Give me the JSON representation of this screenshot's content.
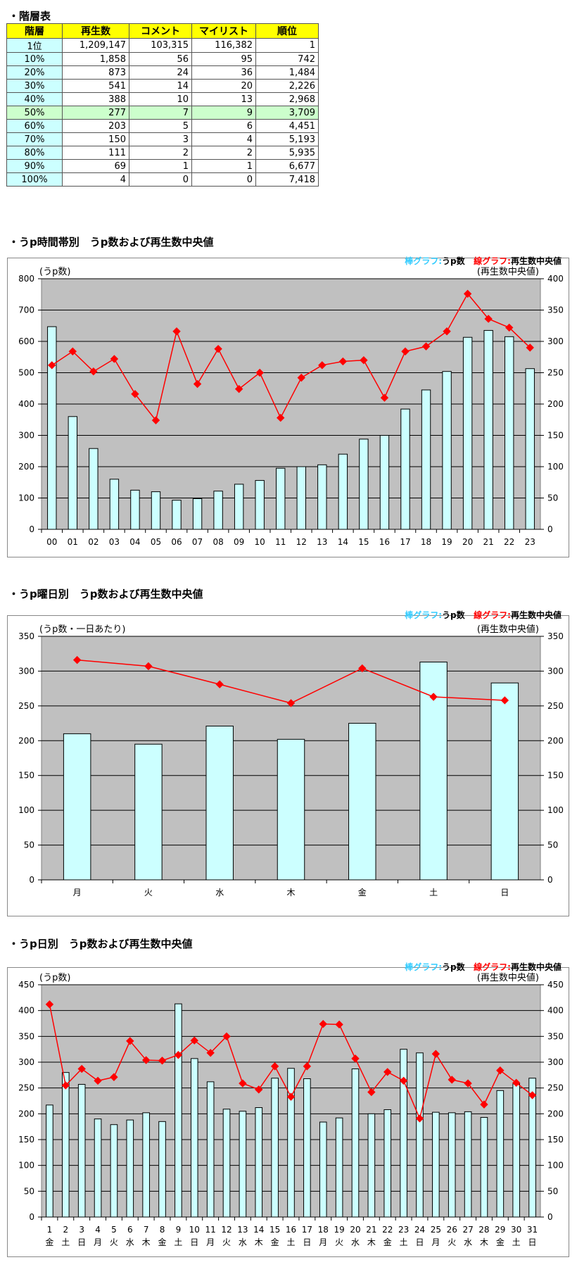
{
  "table": {
    "title": "・階層表",
    "headers": [
      "階層",
      "再生数",
      "コメント",
      "マイリスト",
      "順位"
    ],
    "rows": [
      [
        "1位",
        "1,209,147",
        "103,315",
        "116,382",
        "1"
      ],
      [
        "10%",
        "1,858",
        "56",
        "95",
        "742"
      ],
      [
        "20%",
        "873",
        "24",
        "36",
        "1,484"
      ],
      [
        "30%",
        "541",
        "14",
        "20",
        "2,226"
      ],
      [
        "40%",
        "388",
        "10",
        "13",
        "2,968"
      ],
      [
        "50%",
        "277",
        "7",
        "9",
        "3,709"
      ],
      [
        "60%",
        "203",
        "5",
        "6",
        "4,451"
      ],
      [
        "70%",
        "150",
        "3",
        "4",
        "5,193"
      ],
      [
        "80%",
        "111",
        "2",
        "2",
        "5,935"
      ],
      [
        "90%",
        "69",
        "1",
        "1",
        "6,677"
      ],
      [
        "100%",
        "4",
        "0",
        "0",
        "7,418"
      ]
    ],
    "highlight_row": "50%"
  },
  "colors": {
    "bar_fill": "#ccffff",
    "bar_stroke": "#000000",
    "plot_bg": "#c0c0c0",
    "line": "#ff0000",
    "header_bg": "#ffff00",
    "level_bg": "#ccffff",
    "highlight_bg": "#ccffcc"
  },
  "chart_data": [
    {
      "type": "bar",
      "title": "・うp時間帯別　うp数および再生数中央値",
      "legend": {
        "bar_label": "棒グラフ:",
        "bar_name": "うp数",
        "line_label": "線グラフ:",
        "line_name": "再生数中央値",
        "position": "top-right"
      },
      "ylabel_left": "(うp数)",
      "ylabel_right": "(再生数中央値)",
      "categories": [
        "00",
        "01",
        "02",
        "03",
        "04",
        "05",
        "06",
        "07",
        "08",
        "09",
        "10",
        "11",
        "12",
        "13",
        "14",
        "15",
        "16",
        "17",
        "18",
        "19",
        "20",
        "21",
        "22",
        "23"
      ],
      "series": [
        {
          "name": "うp数",
          "type": "bar",
          "axis": "left",
          "values": [
            647,
            360,
            258,
            160,
            125,
            120,
            93,
            98,
            122,
            144,
            156,
            195,
            200,
            206,
            240,
            288,
            300,
            384,
            445,
            504,
            613,
            635,
            615,
            513
          ]
        },
        {
          "name": "再生数中央値",
          "type": "line",
          "axis": "right",
          "values": [
            262,
            284,
            252,
            272,
            216,
            174,
            316,
            232,
            288,
            224,
            250,
            178,
            242,
            262,
            268,
            270,
            210,
            284,
            292,
            316,
            376,
            336,
            322,
            290
          ]
        }
      ],
      "ylim_left": [
        0,
        800
      ],
      "yticks_left": [
        0,
        100,
        200,
        300,
        400,
        500,
        600,
        700,
        800
      ],
      "ylim_right": [
        0,
        400
      ],
      "yticks_right": [
        0,
        50,
        100,
        150,
        200,
        250,
        300,
        350,
        400
      ],
      "grid": true
    },
    {
      "type": "bar",
      "title": "・うp曜日別　うp数および再生数中央値",
      "legend": {
        "bar_label": "棒グラフ:",
        "bar_name": "うp数",
        "line_label": "線グラフ:",
        "line_name": "再生数中央値",
        "position": "top-right"
      },
      "ylabel_left": "(うp数・一日あたり)",
      "ylabel_right": "(再生数中央値)",
      "categories": [
        "月",
        "火",
        "水",
        "木",
        "金",
        "土",
        "日"
      ],
      "series": [
        {
          "name": "うp数",
          "type": "bar",
          "axis": "left",
          "values": [
            210,
            195,
            221,
            202,
            225,
            313,
            283
          ]
        },
        {
          "name": "再生数中央値",
          "type": "line",
          "axis": "right",
          "values": [
            316,
            307,
            281,
            254,
            304,
            263,
            258
          ]
        }
      ],
      "ylim_left": [
        0,
        350
      ],
      "yticks_left": [
        0,
        50,
        100,
        150,
        200,
        250,
        300,
        350
      ],
      "ylim_right": [
        0,
        350
      ],
      "yticks_right": [
        0,
        50,
        100,
        150,
        200,
        250,
        300,
        350
      ],
      "grid": true
    },
    {
      "type": "bar",
      "title": "・うp日別　うp数および再生数中央値",
      "legend": {
        "bar_label": "棒グラフ:",
        "bar_name": "うp数",
        "line_label": "線グラフ:",
        "line_name": "再生数中央値",
        "position": "top-right"
      },
      "ylabel_left": "(うp数)",
      "ylabel_right": "(再生数中央値)",
      "categories": [
        "1",
        "2",
        "3",
        "4",
        "5",
        "6",
        "7",
        "8",
        "9",
        "10",
        "11",
        "12",
        "13",
        "14",
        "15",
        "16",
        "17",
        "18",
        "19",
        "20",
        "21",
        "22",
        "23",
        "24",
        "25",
        "26",
        "27",
        "28",
        "29",
        "30",
        "31"
      ],
      "weekdays": [
        "金",
        "土",
        "日",
        "月",
        "火",
        "水",
        "木",
        "金",
        "土",
        "日",
        "月",
        "火",
        "水",
        "木",
        "金",
        "土",
        "日",
        "月",
        "火",
        "水",
        "木",
        "金",
        "土",
        "日",
        "月",
        "火",
        "水",
        "木",
        "金",
        "土",
        "日"
      ],
      "series": [
        {
          "name": "うp数",
          "type": "bar",
          "axis": "left",
          "values": [
            217,
            280,
            257,
            190,
            179,
            188,
            202,
            185,
            413,
            307,
            262,
            209,
            205,
            212,
            269,
            288,
            268,
            184,
            192,
            287,
            200,
            208,
            325,
            318,
            203,
            202,
            204,
            193,
            245,
            258,
            269
          ]
        },
        {
          "name": "再生数中央値",
          "type": "line",
          "axis": "right",
          "values": [
            412,
            255,
            287,
            264,
            271,
            341,
            304,
            303,
            314,
            342,
            318,
            350,
            259,
            247,
            292,
            233,
            292,
            374,
            373,
            307,
            242,
            281,
            264,
            191,
            316,
            266,
            259,
            218,
            284,
            260,
            236
          ]
        }
      ],
      "ylim_left": [
        0,
        450
      ],
      "yticks_left": [
        0,
        50,
        100,
        150,
        200,
        250,
        300,
        350,
        400,
        450
      ],
      "ylim_right": [
        0,
        450
      ],
      "yticks_right": [
        0,
        50,
        100,
        150,
        200,
        250,
        300,
        350,
        400,
        450
      ],
      "grid": true
    }
  ]
}
